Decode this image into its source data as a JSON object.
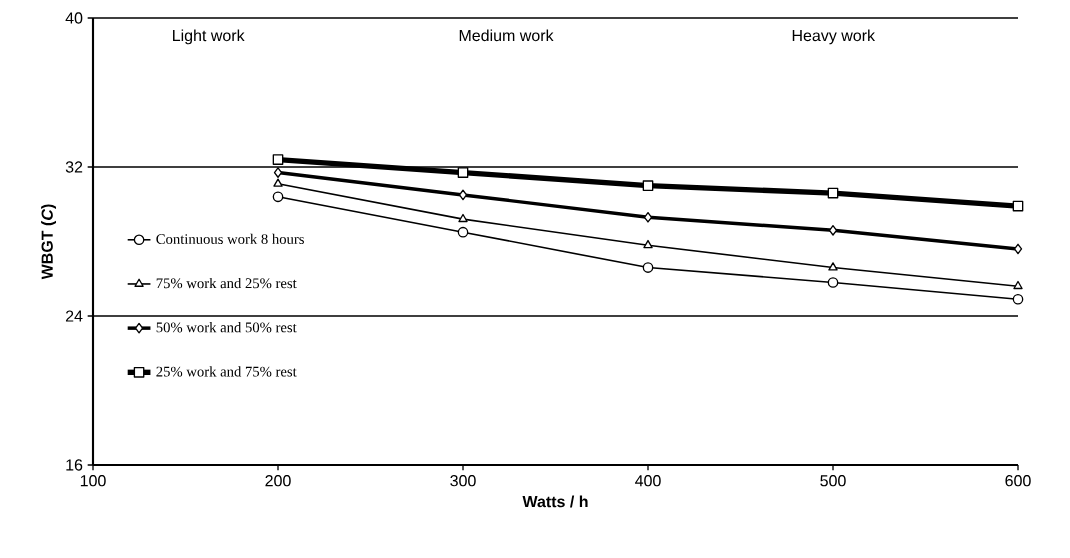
{
  "chart_data": {
    "type": "line",
    "xlabel": "Watts / h",
    "ylabel": "WBGT (*C*)",
    "x": [
      200,
      300,
      400,
      500,
      600
    ],
    "series": [
      {
        "name": "Continuous work  8 hours",
        "color": "#000000",
        "marker": "circle",
        "values": [
          30.4,
          28.5,
          26.6,
          25.8,
          24.9
        ]
      },
      {
        "name": "75% work and 25% rest",
        "color": "#000000",
        "marker": "triangle",
        "values": [
          31.1,
          29.2,
          27.8,
          26.6,
          25.6
        ]
      },
      {
        "name": "50% work and 50% rest",
        "color": "#000000",
        "marker": "diamond",
        "values": [
          31.7,
          30.5,
          29.3,
          28.6,
          27.6
        ]
      },
      {
        "name": "25% work and 75% rest",
        "color": "#000000",
        "marker": "square",
        "values": [
          32.4,
          31.7,
          31.0,
          30.6,
          29.9
        ]
      }
    ],
    "xlim": [
      100,
      600
    ],
    "ylim": [
      16,
      40
    ],
    "xticks": [
      100,
      200,
      300,
      400,
      500,
      600
    ],
    "yticks": [
      16,
      24,
      32,
      40
    ],
    "grid": "y",
    "legend": "left",
    "line_style": "solid",
    "annotations": [
      "Light work",
      "Medium work",
      "Heavy work"
    ]
  }
}
